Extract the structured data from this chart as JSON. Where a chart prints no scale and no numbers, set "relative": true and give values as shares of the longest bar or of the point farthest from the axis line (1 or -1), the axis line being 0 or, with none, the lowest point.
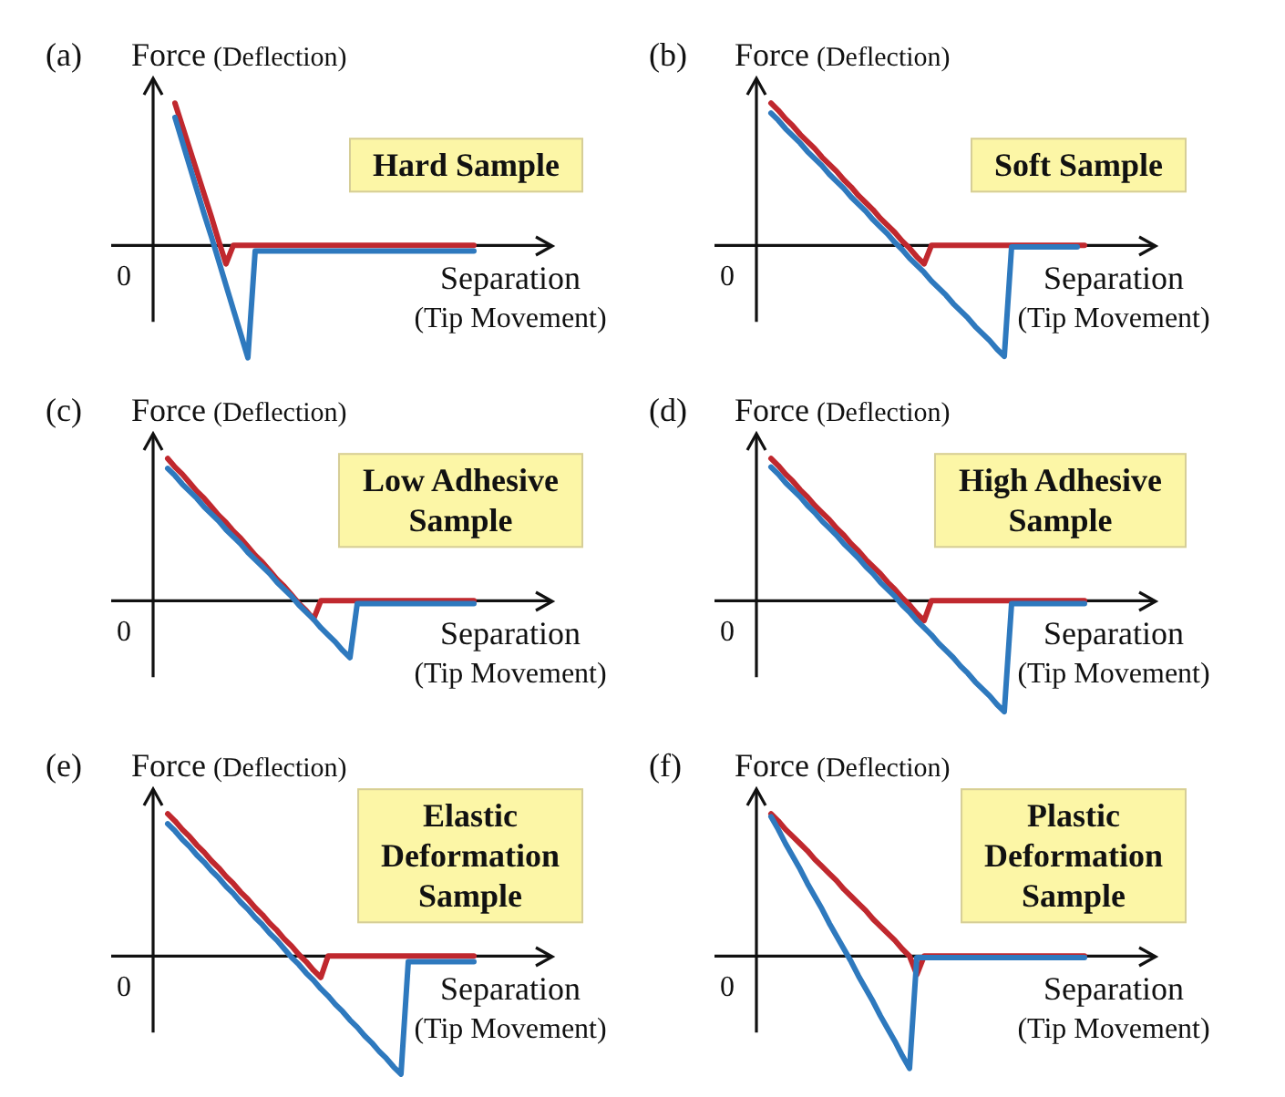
{
  "chart_data": [
    {
      "type": "line",
      "relative": true,
      "title": "(a)",
      "ylabel": "Force (Deflection)",
      "xlabel": "Separation (Tip Movement)",
      "annotations": [
        "Hard Sample",
        "0"
      ],
      "categories": [
        null,
        null,
        null,
        null,
        null,
        null,
        null,
        null,
        null,
        null,
        null,
        null,
        null,
        null,
        null,
        null,
        null,
        null,
        null,
        null,
        null,
        null,
        null,
        null,
        null,
        null,
        null,
        null,
        null,
        null,
        null,
        null,
        null,
        null,
        null,
        null,
        null,
        null,
        null,
        null,
        null,
        null,
        null,
        null,
        null,
        null
      ],
      "series": [
        {
          "color": "#c0282e",
          "values": [
            null,
            null,
            null,
            1.0,
            0.84,
            0.68,
            0.52,
            0.36,
            0.2,
            0.03,
            -0.13,
            0,
            0,
            0,
            0,
            0,
            0,
            0,
            0,
            0,
            0,
            0,
            0,
            0,
            0,
            0,
            0,
            0,
            0,
            0,
            0,
            0,
            0,
            0,
            0,
            0,
            0,
            0,
            0,
            0,
            0,
            0,
            0,
            0,
            0,
            null
          ]
        },
        {
          "color": "#2e79be",
          "values": [
            null,
            null,
            null,
            0.9,
            0.73,
            0.56,
            0.39,
            0.22,
            0.06,
            -0.11,
            -0.28,
            -0.45,
            -0.62,
            -0.79,
            -0.04,
            -0.04,
            -0.04,
            -0.04,
            -0.04,
            -0.04,
            -0.04,
            -0.04,
            -0.04,
            -0.04,
            -0.04,
            -0.04,
            -0.04,
            -0.04,
            -0.04,
            -0.04,
            -0.04,
            -0.04,
            -0.04,
            -0.04,
            -0.04,
            -0.04,
            -0.04,
            -0.04,
            -0.04,
            -0.04,
            -0.04,
            -0.04,
            -0.04,
            -0.04,
            -0.04,
            null
          ]
        }
      ]
    },
    {
      "type": "line",
      "relative": true,
      "title": "(b)",
      "ylabel": "Force (Deflection)",
      "xlabel": "Separation (Tip Movement)",
      "annotations": [
        "Soft Sample",
        "0"
      ],
      "categories": [
        null,
        null,
        null,
        null,
        null,
        null,
        null,
        null,
        null,
        null,
        null,
        null,
        null,
        null,
        null,
        null,
        null,
        null,
        null,
        null,
        null,
        null,
        null,
        null,
        null,
        null,
        null,
        null,
        null,
        null,
        null,
        null,
        null,
        null,
        null,
        null,
        null,
        null,
        null,
        null,
        null,
        null,
        null,
        null,
        null,
        null
      ],
      "series": [
        {
          "color": "#c0282e",
          "values": [
            null,
            null,
            1.0,
            0.95,
            0.89,
            0.84,
            0.78,
            0.73,
            0.68,
            0.62,
            0.57,
            0.52,
            0.46,
            0.41,
            0.35,
            0.3,
            0.25,
            0.19,
            0.14,
            0.09,
            0.03,
            -0.02,
            -0.08,
            -0.13,
            0,
            0,
            0,
            0,
            0,
            0,
            0,
            0,
            0,
            0,
            0,
            0,
            0,
            0,
            0,
            0,
            0,
            0,
            0,
            0,
            0,
            0
          ]
        },
        {
          "color": "#2e79be",
          "values": [
            null,
            null,
            0.93,
            0.88,
            0.82,
            0.77,
            0.72,
            0.66,
            0.61,
            0.56,
            0.5,
            0.45,
            0.4,
            0.34,
            0.29,
            0.24,
            0.18,
            0.13,
            0.08,
            0.02,
            -0.03,
            -0.09,
            -0.14,
            -0.19,
            -0.25,
            -0.3,
            -0.35,
            -0.41,
            -0.46,
            -0.51,
            -0.57,
            -0.62,
            -0.67,
            -0.73,
            -0.78,
            -0.01,
            -0.01,
            -0.01,
            -0.01,
            -0.01,
            -0.01,
            -0.01,
            -0.01,
            -0.01,
            -0.01,
            null
          ]
        }
      ]
    },
    {
      "type": "line",
      "relative": true,
      "title": "(c)",
      "ylabel": "Force (Deflection)",
      "xlabel": "Separation (Tip Movement)",
      "annotations": [
        "Low Adhesive Sample",
        "0"
      ],
      "categories": [
        null,
        null,
        null,
        null,
        null,
        null,
        null,
        null,
        null,
        null,
        null,
        null,
        null,
        null,
        null,
        null,
        null,
        null,
        null,
        null,
        null,
        null,
        null,
        null,
        null,
        null,
        null,
        null,
        null,
        null,
        null,
        null,
        null,
        null,
        null,
        null,
        null,
        null,
        null,
        null,
        null,
        null,
        null,
        null,
        null,
        null
      ],
      "series": [
        {
          "color": "#c0282e",
          "values": [
            null,
            null,
            1.0,
            0.94,
            0.89,
            0.83,
            0.77,
            0.72,
            0.66,
            0.6,
            0.55,
            0.49,
            0.44,
            0.38,
            0.32,
            0.27,
            0.21,
            0.15,
            0.1,
            0.04,
            -0.02,
            -0.07,
            -0.13,
            0,
            0,
            0,
            0,
            0,
            0,
            0,
            0,
            0,
            0,
            0,
            0,
            0,
            0,
            0,
            0,
            0,
            0,
            0,
            0,
            0,
            0,
            null
          ]
        },
        {
          "color": "#2e79be",
          "values": [
            null,
            null,
            0.93,
            0.88,
            0.82,
            0.77,
            0.72,
            0.66,
            0.61,
            0.56,
            0.5,
            0.45,
            0.4,
            0.34,
            0.29,
            0.24,
            0.19,
            0.13,
            0.08,
            0.03,
            -0.03,
            -0.08,
            -0.13,
            -0.19,
            -0.24,
            -0.29,
            -0.35,
            -0.4,
            -0.02,
            -0.02,
            -0.02,
            -0.02,
            -0.02,
            -0.02,
            -0.02,
            -0.02,
            -0.02,
            -0.02,
            -0.02,
            -0.02,
            -0.02,
            -0.02,
            -0.02,
            -0.02,
            -0.02,
            null
          ]
        }
      ]
    },
    {
      "type": "line",
      "relative": true,
      "title": "(d)",
      "ylabel": "Force (Deflection)",
      "xlabel": "Separation (Tip Movement)",
      "annotations": [
        "High Adhesive Sample",
        "0"
      ],
      "categories": [
        null,
        null,
        null,
        null,
        null,
        null,
        null,
        null,
        null,
        null,
        null,
        null,
        null,
        null,
        null,
        null,
        null,
        null,
        null,
        null,
        null,
        null,
        null,
        null,
        null,
        null,
        null,
        null,
        null,
        null,
        null,
        null,
        null,
        null,
        null,
        null,
        null,
        null,
        null,
        null,
        null,
        null,
        null,
        null,
        null,
        null
      ],
      "series": [
        {
          "color": "#c0282e",
          "values": [
            null,
            null,
            1.0,
            0.95,
            0.89,
            0.84,
            0.78,
            0.73,
            0.67,
            0.62,
            0.57,
            0.51,
            0.46,
            0.4,
            0.35,
            0.29,
            0.24,
            0.19,
            0.13,
            0.08,
            0.02,
            -0.03,
            -0.09,
            -0.14,
            0,
            0,
            0,
            0,
            0,
            0,
            0,
            0,
            0,
            0,
            0,
            0,
            0,
            0,
            0,
            0,
            0,
            0,
            0,
            0,
            0,
            0
          ]
        },
        {
          "color": "#2e79be",
          "values": [
            null,
            null,
            0.94,
            0.89,
            0.83,
            0.78,
            0.73,
            0.67,
            0.62,
            0.56,
            0.51,
            0.46,
            0.4,
            0.35,
            0.3,
            0.24,
            0.19,
            0.13,
            0.08,
            0.03,
            -0.03,
            -0.08,
            -0.14,
            -0.19,
            -0.24,
            -0.3,
            -0.35,
            -0.4,
            -0.46,
            -0.51,
            -0.57,
            -0.62,
            -0.67,
            -0.73,
            -0.78,
            -0.02,
            -0.02,
            -0.02,
            -0.02,
            -0.02,
            -0.02,
            -0.02,
            -0.02,
            -0.02,
            -0.02,
            -0.02
          ]
        }
      ]
    },
    {
      "type": "line",
      "relative": true,
      "title": "(e)",
      "ylabel": "Force (Deflection)",
      "xlabel": "Separation (Tip Movement)",
      "annotations": [
        "Elastic Deformation Sample",
        "0"
      ],
      "categories": [
        null,
        null,
        null,
        null,
        null,
        null,
        null,
        null,
        null,
        null,
        null,
        null,
        null,
        null,
        null,
        null,
        null,
        null,
        null,
        null,
        null,
        null,
        null,
        null,
        null,
        null,
        null,
        null,
        null,
        null,
        null,
        null,
        null,
        null,
        null,
        null,
        null,
        null,
        null,
        null,
        null,
        null,
        null,
        null,
        null,
        null
      ],
      "series": [
        {
          "color": "#c0282e",
          "values": [
            null,
            null,
            1.0,
            0.95,
            0.89,
            0.84,
            0.78,
            0.73,
            0.67,
            0.62,
            0.56,
            0.51,
            0.45,
            0.4,
            0.34,
            0.29,
            0.23,
            0.18,
            0.12,
            0.07,
            0.01,
            -0.04,
            -0.1,
            -0.15,
            0,
            0,
            0,
            0,
            0,
            0,
            0,
            0,
            0,
            0,
            0,
            0,
            0,
            0,
            0,
            0,
            0,
            0,
            0,
            0,
            0,
            null
          ]
        },
        {
          "color": "#2e79be",
          "values": [
            null,
            null,
            0.93,
            0.88,
            0.82,
            0.77,
            0.71,
            0.66,
            0.6,
            0.55,
            0.49,
            0.44,
            0.38,
            0.33,
            0.27,
            0.22,
            0.16,
            0.11,
            0.05,
            -0.01,
            -0.06,
            -0.12,
            -0.17,
            -0.23,
            -0.28,
            -0.34,
            -0.39,
            -0.45,
            -0.5,
            -0.56,
            -0.61,
            -0.67,
            -0.72,
            -0.78,
            -0.83,
            -0.04,
            -0.04,
            -0.04,
            -0.04,
            -0.04,
            -0.04,
            -0.04,
            -0.04,
            -0.04,
            -0.04,
            null
          ]
        }
      ]
    },
    {
      "type": "line",
      "relative": true,
      "title": "(f)",
      "ylabel": "Force (Deflection)",
      "xlabel": "Separation (Tip Movement)",
      "annotations": [
        "Plastic Deformation Sample",
        "0"
      ],
      "categories": [
        null,
        null,
        null,
        null,
        null,
        null,
        null,
        null,
        null,
        null,
        null,
        null,
        null,
        null,
        null,
        null,
        null,
        null,
        null,
        null,
        null,
        null,
        null,
        null,
        null,
        null,
        null,
        null,
        null,
        null,
        null,
        null,
        null,
        null,
        null,
        null,
        null,
        null,
        null,
        null,
        null,
        null,
        null,
        null,
        null,
        null
      ],
      "series": [
        {
          "color": "#c0282e",
          "values": [
            null,
            null,
            1.0,
            0.95,
            0.89,
            0.84,
            0.79,
            0.74,
            0.68,
            0.63,
            0.58,
            0.53,
            0.47,
            0.42,
            0.37,
            0.32,
            0.26,
            0.21,
            0.16,
            0.11,
            0.05,
            0,
            -0.13,
            0,
            0,
            0,
            0,
            0,
            0,
            0,
            0,
            0,
            0,
            0,
            0,
            0,
            0,
            0,
            0,
            0,
            0,
            0,
            0,
            0,
            0,
            0
          ]
        },
        {
          "color": "#2e79be",
          "values": [
            null,
            null,
            0.98,
            0.89,
            0.79,
            0.7,
            0.61,
            0.51,
            0.42,
            0.33,
            0.23,
            0.14,
            0.05,
            -0.04,
            -0.14,
            -0.23,
            -0.32,
            -0.42,
            -0.51,
            -0.6,
            -0.7,
            -0.79,
            -0.01,
            -0.01,
            -0.01,
            -0.01,
            -0.01,
            -0.01,
            -0.01,
            -0.01,
            -0.01,
            -0.01,
            -0.01,
            -0.01,
            -0.01,
            -0.01,
            -0.01,
            -0.01,
            -0.01,
            -0.01,
            -0.01,
            -0.01,
            -0.01,
            -0.01,
            -0.01,
            -0.01
          ]
        }
      ]
    }
  ]
}
